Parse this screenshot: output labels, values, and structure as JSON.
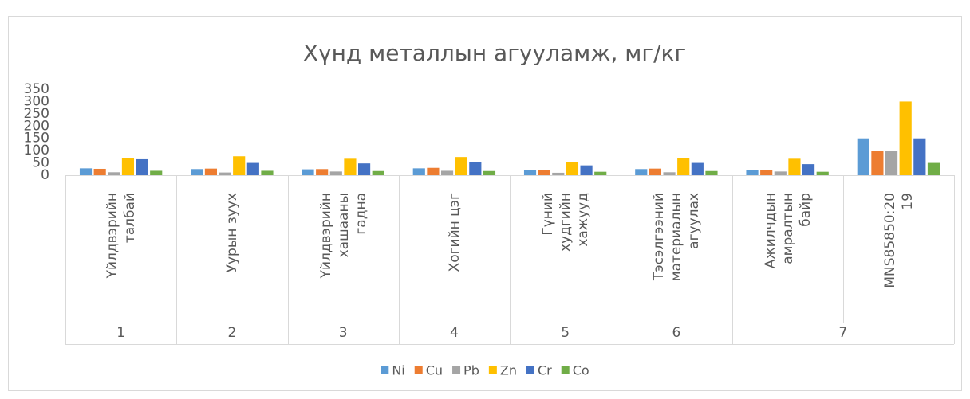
{
  "chart_data": {
    "type": "bar",
    "title": "Хүнд металлын агууламж, мг/кг",
    "groups": [
      {
        "label": "1",
        "categories": [
          "Үйлдвэрийн талбай"
        ]
      },
      {
        "label": "2",
        "categories": [
          "Уурын зуух"
        ]
      },
      {
        "label": "3",
        "categories": [
          "Үйлдвэрийн хашааны гадна"
        ]
      },
      {
        "label": "4",
        "categories": [
          "Хогийн цэг"
        ]
      },
      {
        "label": "5",
        "categories": [
          "Гүний худгийн хажууд"
        ]
      },
      {
        "label": "6",
        "categories": [
          "Тэсэлгээний материалын агуулах"
        ]
      },
      {
        "label": "7",
        "categories": [
          "Ажилчдын амралтын байр",
          "MNS85850:2019"
        ]
      }
    ],
    "series": [
      {
        "name": "Ni",
        "color": "#5b9bd5",
        "values": [
          28,
          25,
          24,
          28,
          20,
          25,
          22,
          150
        ]
      },
      {
        "name": "Cu",
        "color": "#ed7d31",
        "values": [
          26,
          27,
          25,
          30,
          20,
          27,
          20,
          100
        ]
      },
      {
        "name": "Pb",
        "color": "#a5a5a5",
        "values": [
          12,
          11,
          15,
          18,
          10,
          12,
          15,
          100
        ]
      },
      {
        "name": "Zn",
        "color": "#ffc000",
        "values": [
          70,
          77,
          67,
          74,
          52,
          70,
          67,
          300
        ]
      },
      {
        "name": "Cr",
        "color": "#4472c4",
        "values": [
          65,
          50,
          48,
          52,
          40,
          50,
          45,
          150
        ]
      },
      {
        "name": "Co",
        "color": "#70ad47",
        "values": [
          18,
          18,
          17,
          17,
          14,
          17,
          14,
          50
        ]
      }
    ],
    "ylim": [
      0,
      350
    ],
    "yticks": [
      0,
      50,
      100,
      150,
      200,
      250,
      300,
      350
    ],
    "grid": false,
    "legend": "bottom"
  }
}
